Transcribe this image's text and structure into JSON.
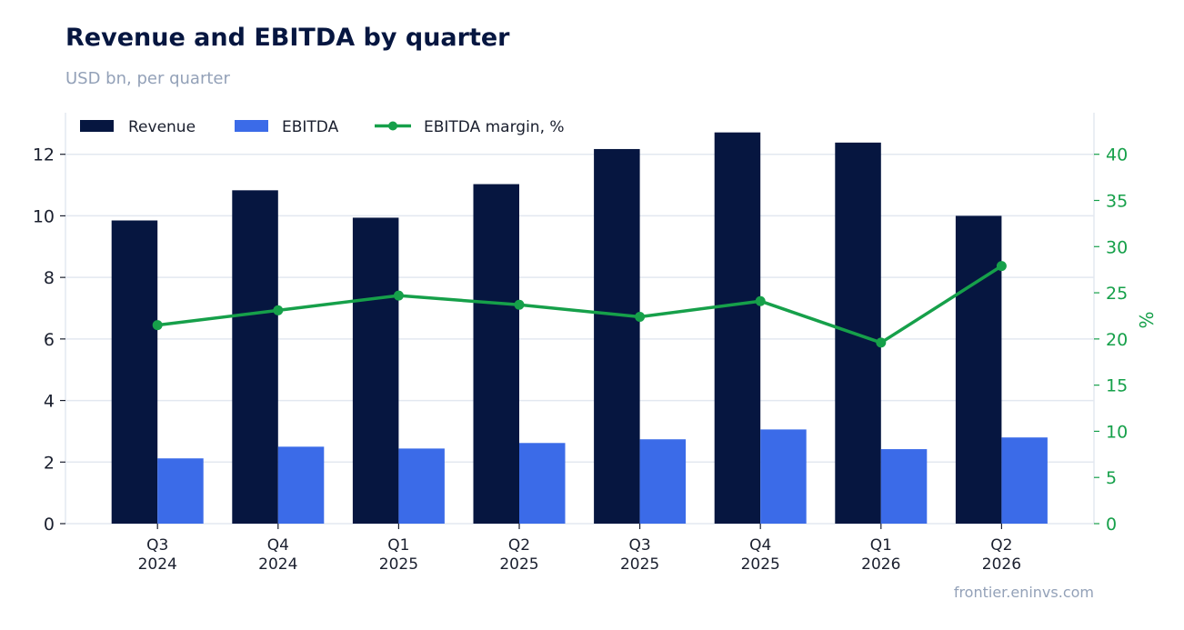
{
  "header": {
    "title": "Revenue and EBITDA by quarter",
    "subtitle": "USD bn, per quarter"
  },
  "footer": {
    "source": "frontier.eninvs.com"
  },
  "colors": {
    "revenue": "#061640",
    "ebitda": "#3b6be8",
    "margin": "#16a04a",
    "grid": "#e3e8f0",
    "axis_text": "#1a1f2e",
    "right_axis_text": "#16a04a"
  },
  "chart_data": {
    "type": "bar",
    "title": "Revenue and EBITDA by quarter",
    "subtitle": "USD bn, per quarter",
    "categories": [
      [
        "Q3",
        "2024"
      ],
      [
        "Q4",
        "2024"
      ],
      [
        "Q1",
        "2025"
      ],
      [
        "Q2",
        "2025"
      ],
      [
        "Q3",
        "2025"
      ],
      [
        "Q4",
        "2025"
      ],
      [
        "Q1",
        "2026"
      ],
      [
        "Q2",
        "2026"
      ]
    ],
    "series": [
      {
        "name": "Revenue",
        "type": "bar",
        "axis": "left",
        "values": [
          9.85,
          10.83,
          9.94,
          11.03,
          12.17,
          12.71,
          12.38,
          10.0
        ]
      },
      {
        "name": "EBITDA",
        "type": "bar",
        "axis": "left",
        "values": [
          2.12,
          2.5,
          2.44,
          2.62,
          2.74,
          3.06,
          2.42,
          2.8
        ]
      },
      {
        "name": "EBITDA margin, %",
        "type": "line",
        "axis": "right",
        "values": [
          21.5,
          23.1,
          24.7,
          23.7,
          22.4,
          24.1,
          19.6,
          27.9
        ]
      }
    ],
    "ylim": [
      0,
      13.35
    ],
    "yticks": [
      0,
      2,
      4,
      6,
      8,
      10,
      12
    ],
    "y2label": "%",
    "y2lim": [
      0,
      44.5
    ],
    "y2ticks": [
      0,
      5,
      10,
      15,
      20,
      25,
      30,
      35,
      40
    ],
    "grid": true,
    "legend": "top-left"
  }
}
